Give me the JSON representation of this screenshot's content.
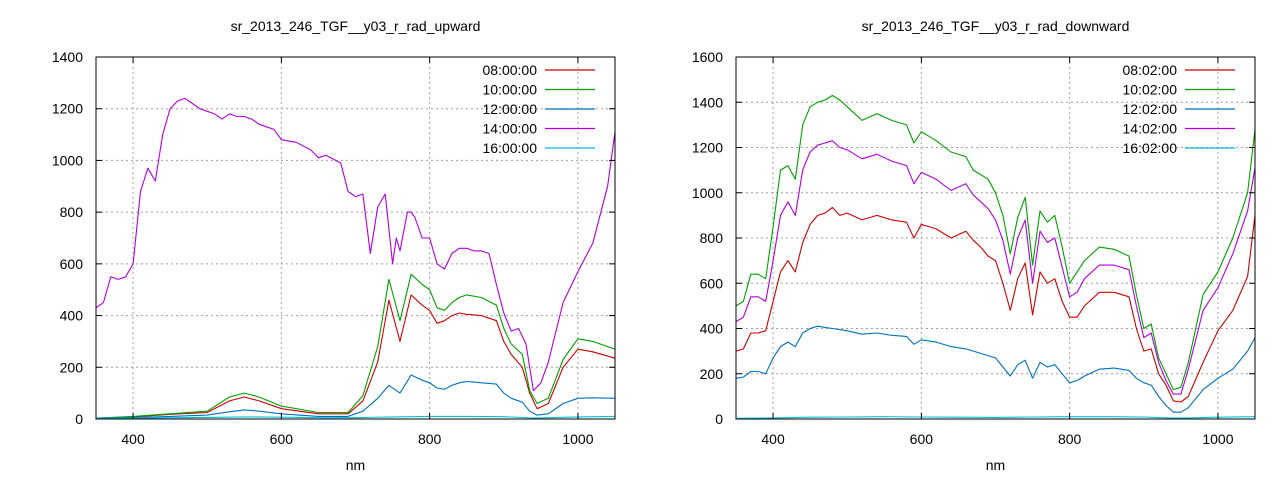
{
  "chart_data": [
    {
      "type": "line",
      "title": "sr_2013_246_TGF__y03_r_rad_upward",
      "xlabel": "nm",
      "ylabel": "",
      "xlim": [
        350,
        1050
      ],
      "ylim": [
        0,
        1400
      ],
      "xticks": [
        400,
        600,
        800,
        1000
      ],
      "yticks": [
        0,
        200,
        400,
        600,
        800,
        1000,
        1200,
        1400
      ],
      "grid": true,
      "legend": "top-right",
      "series": [
        {
          "name": "08:00:00",
          "color": "#cc0000",
          "x": [
            350,
            400,
            450,
            500,
            530,
            550,
            570,
            600,
            650,
            690,
            710,
            730,
            745,
            760,
            775,
            790,
            800,
            810,
            820,
            830,
            840,
            850,
            870,
            890,
            900,
            910,
            925,
            935,
            945,
            960,
            980,
            1000,
            1020,
            1050
          ],
          "y": [
            3,
            8,
            18,
            25,
            70,
            85,
            70,
            40,
            20,
            20,
            70,
            220,
            460,
            300,
            480,
            440,
            420,
            370,
            380,
            400,
            410,
            405,
            400,
            380,
            300,
            250,
            200,
            100,
            40,
            60,
            200,
            270,
            260,
            235
          ]
        },
        {
          "name": "10:00:00",
          "color": "#00a000",
          "x": [
            350,
            400,
            450,
            500,
            530,
            550,
            570,
            600,
            650,
            690,
            710,
            730,
            745,
            760,
            775,
            790,
            800,
            810,
            820,
            830,
            840,
            850,
            870,
            890,
            900,
            910,
            925,
            935,
            945,
            960,
            980,
            1000,
            1020,
            1050
          ],
          "y": [
            3,
            10,
            20,
            30,
            85,
            100,
            85,
            50,
            25,
            25,
            90,
            280,
            540,
            380,
            560,
            520,
            500,
            430,
            420,
            450,
            470,
            480,
            470,
            440,
            350,
            290,
            250,
            110,
            60,
            80,
            230,
            310,
            300,
            270
          ]
        },
        {
          "name": "12:00:00",
          "color": "#0070c0",
          "x": [
            350,
            400,
            450,
            500,
            530,
            550,
            570,
            600,
            650,
            690,
            710,
            730,
            745,
            760,
            775,
            790,
            800,
            810,
            820,
            830,
            840,
            850,
            870,
            890,
            900,
            910,
            925,
            935,
            945,
            960,
            980,
            1000,
            1020,
            1050
          ],
          "y": [
            3,
            5,
            10,
            15,
            28,
            35,
            30,
            20,
            10,
            10,
            30,
            80,
            130,
            100,
            170,
            150,
            140,
            120,
            115,
            130,
            140,
            145,
            140,
            135,
            100,
            80,
            65,
            30,
            15,
            20,
            60,
            80,
            82,
            80
          ]
        },
        {
          "name": "14:00:00",
          "color": "#b000e0",
          "x": [
            350,
            360,
            370,
            380,
            390,
            400,
            410,
            420,
            430,
            440,
            450,
            460,
            470,
            480,
            490,
            500,
            510,
            520,
            530,
            540,
            550,
            560,
            570,
            580,
            590,
            600,
            620,
            640,
            650,
            660,
            680,
            690,
            700,
            710,
            720,
            730,
            740,
            750,
            755,
            760,
            770,
            775,
            780,
            790,
            800,
            810,
            820,
            830,
            840,
            850,
            860,
            870,
            880,
            890,
            900,
            910,
            920,
            930,
            935,
            940,
            950,
            960,
            980,
            1000,
            1020,
            1040,
            1050
          ],
          "y": [
            430,
            450,
            550,
            540,
            550,
            600,
            880,
            970,
            920,
            1100,
            1200,
            1230,
            1240,
            1220,
            1200,
            1190,
            1180,
            1160,
            1180,
            1170,
            1170,
            1160,
            1140,
            1130,
            1120,
            1080,
            1070,
            1040,
            1010,
            1020,
            990,
            880,
            860,
            870,
            640,
            820,
            870,
            600,
            700,
            650,
            800,
            800,
            780,
            700,
            700,
            600,
            580,
            640,
            660,
            660,
            650,
            650,
            640,
            520,
            410,
            340,
            350,
            290,
            200,
            110,
            140,
            220,
            450,
            570,
            680,
            900,
            1110
          ]
        },
        {
          "name": "16:00:00",
          "color": "#00c0e0",
          "x": [
            350,
            400,
            450,
            500,
            550,
            600,
            650,
            700,
            750,
            800,
            850,
            900,
            940,
            960,
            1000,
            1050
          ],
          "y": [
            2,
            3,
            5,
            6,
            8,
            7,
            5,
            5,
            8,
            10,
            10,
            9,
            4,
            5,
            8,
            10
          ]
        }
      ]
    },
    {
      "type": "line",
      "title": "sr_2013_246_TGF__y03_r_rad_downward",
      "xlabel": "nm",
      "ylabel": "",
      "xlim": [
        350,
        1050
      ],
      "ylim": [
        0,
        1600
      ],
      "xticks": [
        400,
        600,
        800,
        1000
      ],
      "yticks": [
        0,
        200,
        400,
        600,
        800,
        1000,
        1200,
        1400,
        1600
      ],
      "grid": true,
      "legend": "top-right",
      "series": [
        {
          "name": "08:02:00",
          "color": "#cc0000",
          "x": [
            350,
            360,
            370,
            380,
            390,
            400,
            410,
            420,
            430,
            440,
            450,
            460,
            470,
            480,
            490,
            500,
            520,
            540,
            560,
            580,
            590,
            600,
            620,
            640,
            660,
            670,
            680,
            690,
            700,
            710,
            720,
            730,
            740,
            750,
            760,
            770,
            780,
            790,
            800,
            810,
            820,
            840,
            860,
            880,
            890,
            900,
            910,
            920,
            930,
            940,
            950,
            960,
            980,
            1000,
            1020,
            1040,
            1050
          ],
          "y": [
            300,
            310,
            380,
            380,
            390,
            520,
            650,
            700,
            650,
            780,
            860,
            900,
            910,
            935,
            900,
            910,
            880,
            900,
            880,
            870,
            800,
            860,
            840,
            800,
            830,
            790,
            760,
            720,
            700,
            600,
            480,
            620,
            690,
            460,
            650,
            600,
            620,
            520,
            450,
            450,
            500,
            560,
            560,
            540,
            400,
            300,
            310,
            200,
            150,
            80,
            75,
            100,
            250,
            390,
            480,
            630,
            900
          ]
        },
        {
          "name": "10:02:00",
          "color": "#00a000",
          "x": [
            350,
            360,
            370,
            380,
            390,
            400,
            410,
            420,
            430,
            440,
            450,
            460,
            470,
            480,
            490,
            500,
            520,
            540,
            560,
            580,
            590,
            600,
            620,
            640,
            660,
            670,
            680,
            690,
            700,
            710,
            720,
            730,
            740,
            750,
            760,
            770,
            780,
            790,
            800,
            810,
            820,
            840,
            860,
            880,
            890,
            900,
            910,
            920,
            930,
            940,
            950,
            960,
            980,
            1000,
            1020,
            1040,
            1050
          ],
          "y": [
            500,
            520,
            640,
            640,
            620,
            850,
            1100,
            1120,
            1060,
            1300,
            1380,
            1400,
            1410,
            1430,
            1410,
            1380,
            1320,
            1350,
            1320,
            1300,
            1220,
            1270,
            1230,
            1180,
            1160,
            1100,
            1080,
            1060,
            1000,
            900,
            730,
            890,
            980,
            680,
            920,
            870,
            900,
            760,
            600,
            650,
            700,
            760,
            750,
            720,
            550,
            400,
            420,
            270,
            200,
            130,
            140,
            250,
            550,
            650,
            800,
            1000,
            1280
          ]
        },
        {
          "name": "12:02:00",
          "color": "#0070c0",
          "x": [
            350,
            360,
            370,
            380,
            390,
            400,
            410,
            420,
            430,
            440,
            450,
            460,
            470,
            480,
            490,
            500,
            520,
            540,
            560,
            580,
            590,
            600,
            620,
            640,
            660,
            670,
            680,
            690,
            700,
            710,
            720,
            730,
            740,
            750,
            760,
            770,
            780,
            790,
            800,
            810,
            820,
            840,
            860,
            880,
            890,
            900,
            910,
            920,
            930,
            940,
            950,
            960,
            980,
            1000,
            1020,
            1040,
            1050
          ],
          "y": [
            180,
            185,
            210,
            210,
            200,
            270,
            320,
            340,
            320,
            380,
            400,
            410,
            405,
            400,
            395,
            390,
            375,
            380,
            370,
            365,
            330,
            350,
            340,
            320,
            310,
            300,
            290,
            280,
            270,
            230,
            190,
            240,
            260,
            180,
            250,
            230,
            240,
            200,
            160,
            170,
            190,
            220,
            225,
            215,
            180,
            160,
            150,
            100,
            60,
            30,
            30,
            50,
            130,
            180,
            220,
            300,
            360
          ]
        },
        {
          "name": "14:02:00",
          "color": "#b000e0",
          "x": [
            350,
            360,
            370,
            380,
            390,
            400,
            410,
            420,
            430,
            440,
            450,
            460,
            470,
            480,
            490,
            500,
            520,
            540,
            560,
            580,
            590,
            600,
            620,
            640,
            660,
            670,
            680,
            690,
            700,
            710,
            720,
            730,
            740,
            750,
            760,
            770,
            780,
            790,
            800,
            810,
            820,
            840,
            860,
            880,
            890,
            900,
            910,
            920,
            930,
            940,
            950,
            960,
            980,
            1000,
            1020,
            1040,
            1050
          ],
          "y": [
            430,
            450,
            540,
            540,
            520,
            700,
            900,
            960,
            900,
            1100,
            1180,
            1210,
            1220,
            1230,
            1200,
            1190,
            1150,
            1170,
            1140,
            1120,
            1040,
            1090,
            1060,
            1010,
            1040,
            990,
            960,
            930,
            880,
            790,
            640,
            800,
            880,
            600,
            830,
            780,
            800,
            670,
            540,
            560,
            620,
            680,
            680,
            660,
            500,
            360,
            380,
            250,
            170,
            110,
            110,
            220,
            480,
            580,
            730,
            920,
            1110
          ]
        },
        {
          "name": "16:02:00",
          "color": "#00c0e0",
          "x": [
            350,
            400,
            450,
            500,
            550,
            600,
            650,
            700,
            750,
            800,
            850,
            900,
            940,
            960,
            1000,
            1050
          ],
          "y": [
            3,
            5,
            8,
            9,
            10,
            9,
            8,
            7,
            9,
            10,
            10,
            9,
            4,
            5,
            8,
            10
          ]
        }
      ]
    }
  ]
}
